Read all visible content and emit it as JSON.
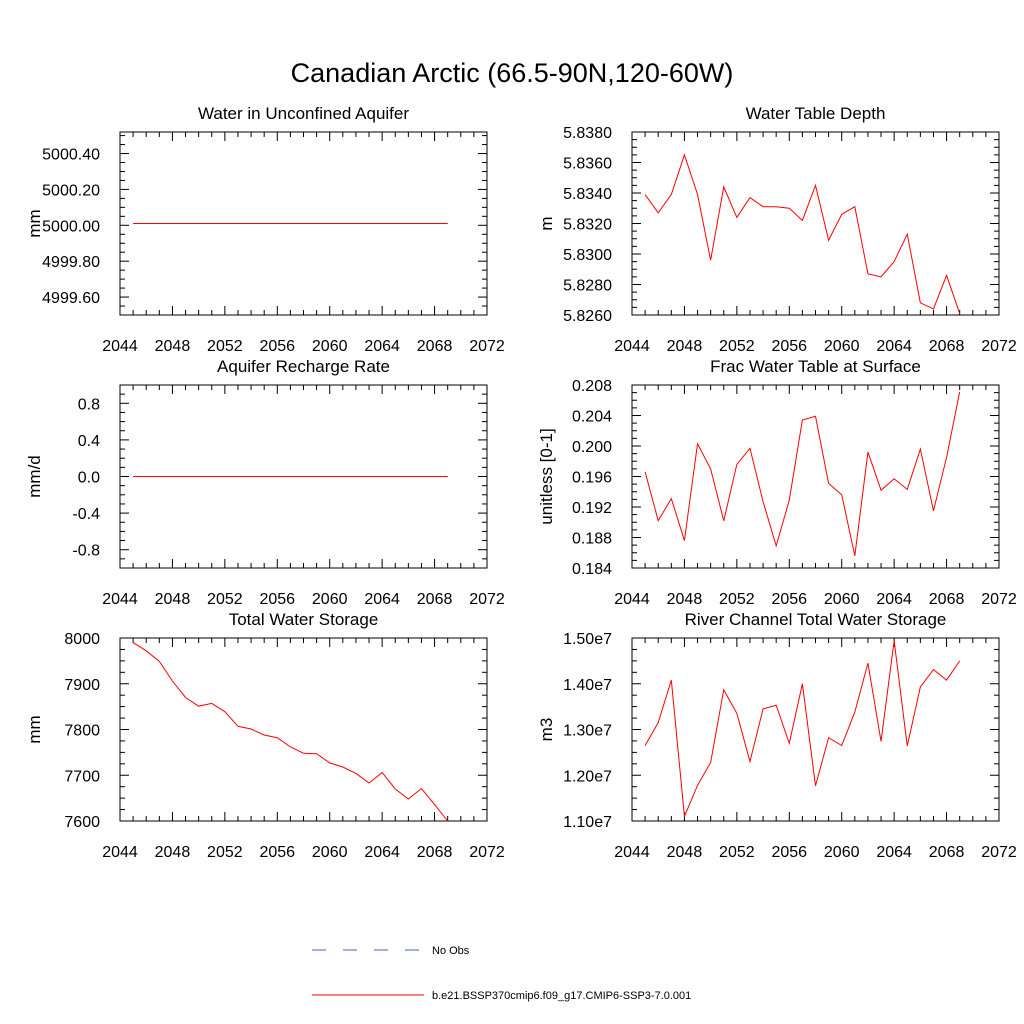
{
  "title": "Canadian Arctic (66.5-90N,120-60W)",
  "colors": {
    "model": "#ff0000",
    "obs": "#4a5fc0",
    "axis": "#000000"
  },
  "legend": {
    "items": [
      {
        "label": "No Obs",
        "style": "dashed",
        "color": "#4a5fc0"
      },
      {
        "label": "b.e21.BSSP370cmip6.f09_g17.CMIP6-SSP3-7.0.001",
        "style": "solid",
        "color": "#ff0000"
      }
    ]
  },
  "chart_data": [
    {
      "type": "line",
      "title": "Water in Unconfined Aquifer",
      "ylabel": "mm",
      "xlim": [
        2044,
        2072
      ],
      "ylim": [
        4999.5,
        5000.52
      ],
      "xticks": [
        "2044",
        "2048",
        "2052",
        "2056",
        "2060",
        "2064",
        "2068",
        "2072"
      ],
      "yticks": [
        "4999.60",
        "4999.80",
        "5000.00",
        "5000.20",
        "5000.40"
      ],
      "x": [
        2045,
        2069
      ],
      "series": [
        {
          "values": [
            5000.01,
            5000.01
          ]
        }
      ]
    },
    {
      "type": "line",
      "title": "Water Table Depth",
      "ylabel": "m",
      "xlim": [
        2044,
        2072
      ],
      "ylim": [
        5.826,
        5.838
      ],
      "xticks": [
        "2044",
        "2048",
        "2052",
        "2056",
        "2060",
        "2064",
        "2068",
        "2072"
      ],
      "yticks": [
        "5.8260",
        "5.8280",
        "5.8300",
        "5.8320",
        "5.8340",
        "5.8360",
        "5.8380"
      ],
      "x": [
        2045,
        2046,
        2047,
        2048,
        2049,
        2050,
        2051,
        2052,
        2053,
        2054,
        2055,
        2056,
        2057,
        2058,
        2059,
        2060,
        2061,
        2062,
        2063,
        2064,
        2065,
        2066,
        2067,
        2068,
        2069
      ],
      "series": [
        {
          "values": [
            5.8339,
            5.8327,
            5.8339,
            5.8365,
            5.8339,
            5.8296,
            5.8344,
            5.8324,
            5.8337,
            5.8331,
            5.8331,
            5.833,
            5.8322,
            5.8345,
            5.8309,
            5.8326,
            5.8331,
            5.8287,
            5.8285,
            5.8295,
            5.8313,
            5.8268,
            5.8264,
            5.8286,
            5.8261
          ]
        }
      ]
    },
    {
      "type": "line",
      "title": "Aquifer Recharge Rate",
      "ylabel": "mm/d",
      "xlim": [
        2044,
        2072
      ],
      "ylim": [
        -1.0,
        1.0
      ],
      "xticks": [
        "2044",
        "2048",
        "2052",
        "2056",
        "2060",
        "2064",
        "2068",
        "2072"
      ],
      "yticks": [
        "-0.8",
        "-0.4",
        "0.0",
        "0.4",
        "0.8"
      ],
      "x": [
        2045,
        2069
      ],
      "series": [
        {
          "values": [
            0.0,
            0.0
          ]
        }
      ]
    },
    {
      "type": "line",
      "title": "Frac Water Table at Surface",
      "ylabel": "unitless [0-1]",
      "xlim": [
        2044,
        2072
      ],
      "ylim": [
        0.184,
        0.208
      ],
      "xticks": [
        "2044",
        "2048",
        "2052",
        "2056",
        "2060",
        "2064",
        "2068",
        "2072"
      ],
      "yticks": [
        "0.184",
        "0.188",
        "0.192",
        "0.196",
        "0.200",
        "0.204",
        "0.208"
      ],
      "x": [
        2045,
        2046,
        2047,
        2048,
        2049,
        2050,
        2051,
        2052,
        2053,
        2054,
        2055,
        2056,
        2057,
        2058,
        2059,
        2060,
        2061,
        2062,
        2063,
        2064,
        2065,
        2066,
        2067,
        2068,
        2069
      ],
      "series": [
        {
          "values": [
            0.1966,
            0.1902,
            0.1931,
            0.1876,
            0.2003,
            0.197,
            0.1902,
            0.1976,
            0.1997,
            0.1927,
            0.1869,
            0.1929,
            0.2034,
            0.2039,
            0.1951,
            0.1936,
            0.1856,
            0.1992,
            0.1942,
            0.1957,
            0.1943,
            0.1996,
            0.1915,
            0.1985,
            0.2071
          ]
        }
      ]
    },
    {
      "type": "line",
      "title": "Total Water Storage",
      "ylabel": "mm",
      "xlim": [
        2044,
        2072
      ],
      "ylim": [
        7600,
        8000
      ],
      "xticks": [
        "2044",
        "2048",
        "2052",
        "2056",
        "2060",
        "2064",
        "2068",
        "2072"
      ],
      "yticks": [
        "7600",
        "7700",
        "7800",
        "7900",
        "8000"
      ],
      "x": [
        2045,
        2046,
        2047,
        2048,
        2049,
        2050,
        2051,
        2052,
        2053,
        2054,
        2055,
        2056,
        2057,
        2058,
        2059,
        2060,
        2061,
        2062,
        2063,
        2064,
        2065,
        2066,
        2067,
        2068,
        2069
      ],
      "series": [
        {
          "values": [
            7990,
            7972,
            7949,
            7906,
            7870,
            7851,
            7857,
            7839,
            7807,
            7801,
            7788,
            7782,
            7762,
            7748,
            7747,
            7727,
            7718,
            7704,
            7683,
            7706,
            7670,
            7648,
            7671,
            7636,
            7600
          ]
        }
      ]
    },
    {
      "type": "line",
      "title": "River Channel Total Water Storage",
      "ylabel": "m3",
      "xlim": [
        2044,
        2072
      ],
      "ylim": [
        11000000,
        15000000
      ],
      "xticks": [
        "2044",
        "2048",
        "2052",
        "2056",
        "2060",
        "2064",
        "2068",
        "2072"
      ],
      "yticks": [
        "1.10e7",
        "1.20e7",
        "1.30e7",
        "1.40e7",
        "1.50e7"
      ],
      "x": [
        2045,
        2046,
        2047,
        2048,
        2049,
        2050,
        2051,
        2052,
        2053,
        2054,
        2055,
        2056,
        2057,
        2058,
        2059,
        2060,
        2061,
        2062,
        2063,
        2064,
        2065,
        2066,
        2067,
        2068,
        2069
      ],
      "series": [
        {
          "values": [
            12650000,
            13150000,
            14080000,
            11100000,
            11780000,
            12280000,
            13870000,
            13350000,
            12300000,
            13450000,
            13530000,
            12700000,
            14000000,
            11770000,
            12820000,
            12650000,
            13380000,
            14450000,
            12740000,
            14940000,
            12640000,
            13930000,
            14310000,
            14080000,
            14500000
          ]
        }
      ]
    }
  ]
}
